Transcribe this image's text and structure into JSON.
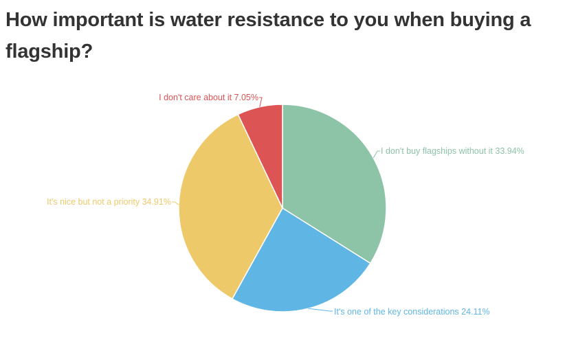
{
  "chart_data": {
    "type": "pie",
    "title": "How important is water resistance to you when buying a flagship?",
    "slices": [
      {
        "label": "I don't buy flagships without it",
        "value": 33.94,
        "display": "33.94%",
        "color": "#8dc3a7"
      },
      {
        "label": "It's one of the key considerations",
        "value": 24.11,
        "display": "24.11%",
        "color": "#5fb6e5"
      },
      {
        "label": "It's nice but not a priority",
        "value": 34.91,
        "display": "34.91%",
        "color": "#eec96a"
      },
      {
        "label": "I don't care about it",
        "value": 7.05,
        "display": "7.05%",
        "color": "#dc5454"
      }
    ],
    "legend": "none",
    "labels": "outside-with-leader-lines"
  }
}
